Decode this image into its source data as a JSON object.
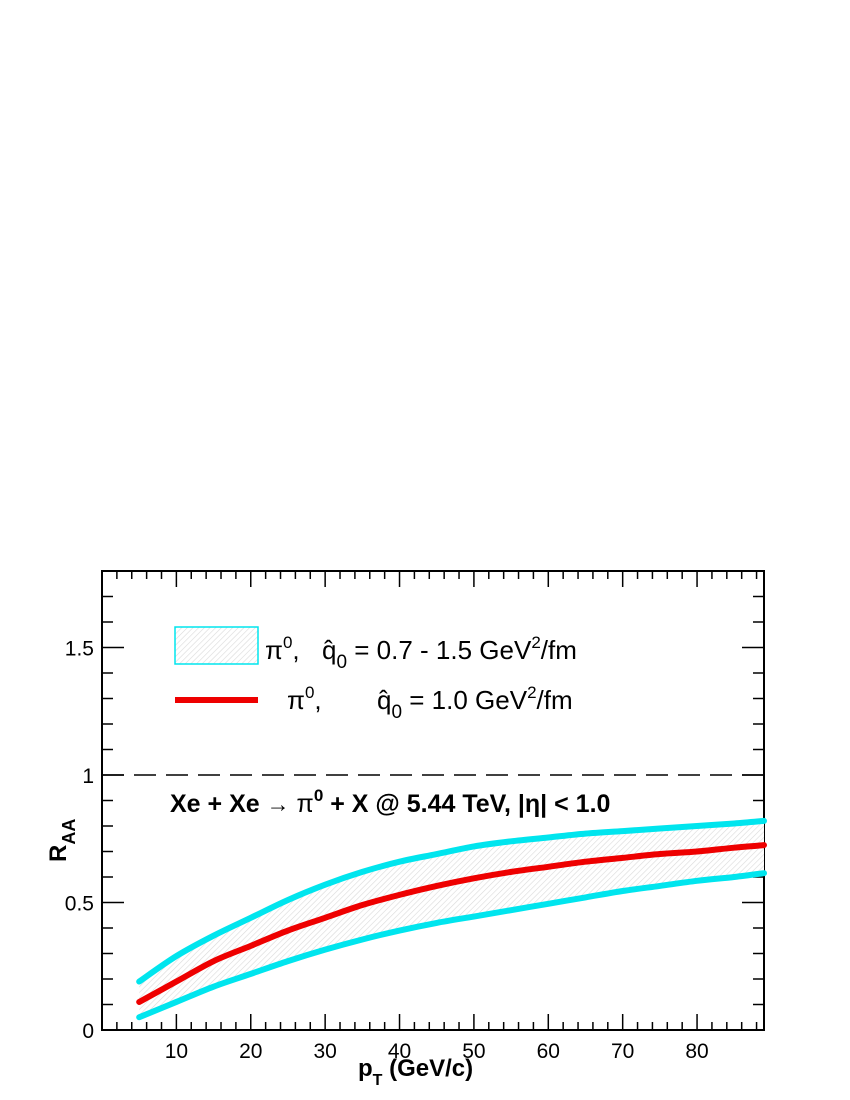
{
  "chart_data": {
    "type": "line",
    "title": "",
    "xlabel": "p",
    "xlabel_sub": "T",
    "xlabel_unit": " (GeV/c)",
    "ylabel": "R",
    "ylabel_sub": "AA",
    "xlim": [
      0,
      89
    ],
    "ylim": [
      0,
      1.8
    ],
    "xticks": [
      10,
      20,
      30,
      40,
      50,
      60,
      70,
      80
    ],
    "xtick_labels": [
      "10",
      "20",
      "30",
      "40",
      "50",
      "60",
      "70",
      "80"
    ],
    "yticks": [
      0,
      0.5,
      1,
      1.5
    ],
    "ytick_labels": [
      "0",
      "0.5",
      "1",
      "1.5"
    ],
    "reference_line": {
      "y": 1,
      "style": "dashed"
    },
    "x": [
      5,
      10,
      15,
      20,
      25,
      30,
      35,
      40,
      45,
      50,
      55,
      60,
      65,
      70,
      75,
      80,
      85,
      89
    ],
    "series": [
      {
        "role": "band-upper",
        "color": "#00e5ee",
        "values": [
          0.19,
          0.29,
          0.37,
          0.44,
          0.51,
          0.57,
          0.62,
          0.66,
          0.69,
          0.72,
          0.74,
          0.755,
          0.77,
          0.78,
          0.79,
          0.8,
          0.81,
          0.82
        ]
      },
      {
        "role": "central",
        "color": "#ee0000",
        "values": [
          0.11,
          0.19,
          0.27,
          0.33,
          0.39,
          0.44,
          0.49,
          0.53,
          0.565,
          0.595,
          0.62,
          0.64,
          0.66,
          0.675,
          0.69,
          0.7,
          0.715,
          0.725
        ]
      },
      {
        "role": "band-lower",
        "color": "#00e5ee",
        "values": [
          0.05,
          0.11,
          0.17,
          0.22,
          0.27,
          0.315,
          0.355,
          0.39,
          0.42,
          0.445,
          0.47,
          0.495,
          0.52,
          0.545,
          0.565,
          0.585,
          0.6,
          0.615
        ]
      }
    ],
    "band_fill": "#e8eef0",
    "legend": {
      "placement": "top-left",
      "entries": [
        {
          "symbol": "band",
          "particle": "π",
          "sup": "0",
          "sep": ",  ",
          "qhat": "q̂",
          "qsub": "0",
          "eq": " = 0.7 - 1.5 GeV",
          "unit_sup": "2",
          "unit_tail": "/fm"
        },
        {
          "symbol": "line",
          "particle": "π",
          "sup": "0",
          "sep": ",",
          "qhat": "q̂",
          "qsub": "0",
          "eq": " = 1.0 GeV",
          "unit_sup": "2",
          "unit_tail": "/fm"
        }
      ]
    },
    "annotation": {
      "pre": "Xe + Xe ",
      "arrow": "→",
      "particle": " π",
      "sup": "0",
      "post": " + X @ 5.44 TeV,  |η| < 1.0"
    }
  }
}
